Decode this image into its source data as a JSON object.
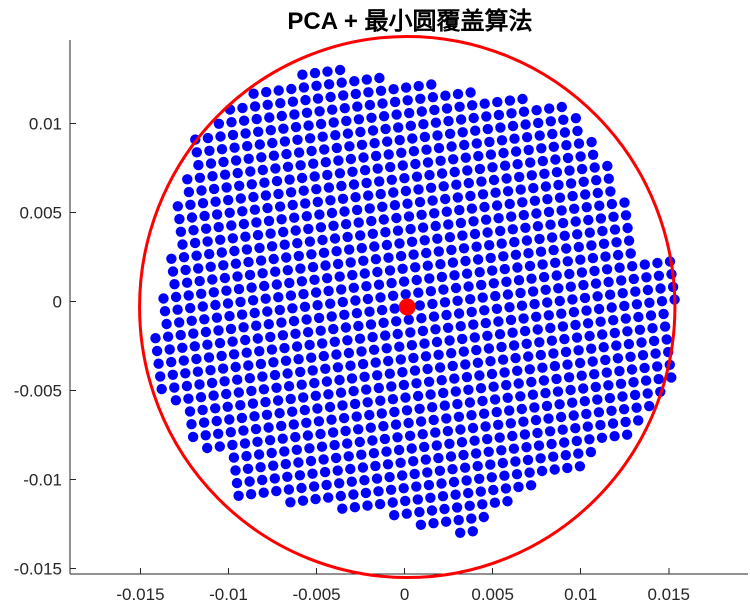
{
  "chart_data": {
    "type": "scatter",
    "title": "PCA + 最小圆覆盖算法",
    "xlabel": "",
    "ylabel": "",
    "xlim": [
      -0.019,
      0.0195
    ],
    "ylim": [
      -0.0153,
      0.0147
    ],
    "x_ticks": [
      -0.015,
      -0.01,
      -0.005,
      0,
      0.005,
      0.01,
      0.015
    ],
    "x_tick_labels": [
      "-0.015",
      "-0.01",
      "-0.005",
      "0",
      "0.005",
      "0.01",
      "0.015"
    ],
    "y_ticks": [
      -0.015,
      -0.01,
      -0.005,
      0,
      0.005,
      0.01
    ],
    "y_tick_labels": [
      "-0.015",
      "-0.01",
      "-0.005",
      "0",
      "0.005",
      "0.01"
    ],
    "grid": false,
    "point_color": "#0000ff",
    "circle_color": "#ff0000",
    "center_color": "#ff0000",
    "point_grid": {
      "description_of_rows": "each row is a rotated line of points; listed by starting point and end point",
      "rotation_deg": 7,
      "spacing": 0.00072
    },
    "circle": {
      "center": [
        0.00015,
        -0.0003
      ],
      "radius": 0.0152
    },
    "center_point": [
      0.00015,
      -0.0003
    ],
    "series": [
      {
        "name": "",
        "shape": "rotated-square-grid",
        "row_count": 33
      }
    ]
  }
}
